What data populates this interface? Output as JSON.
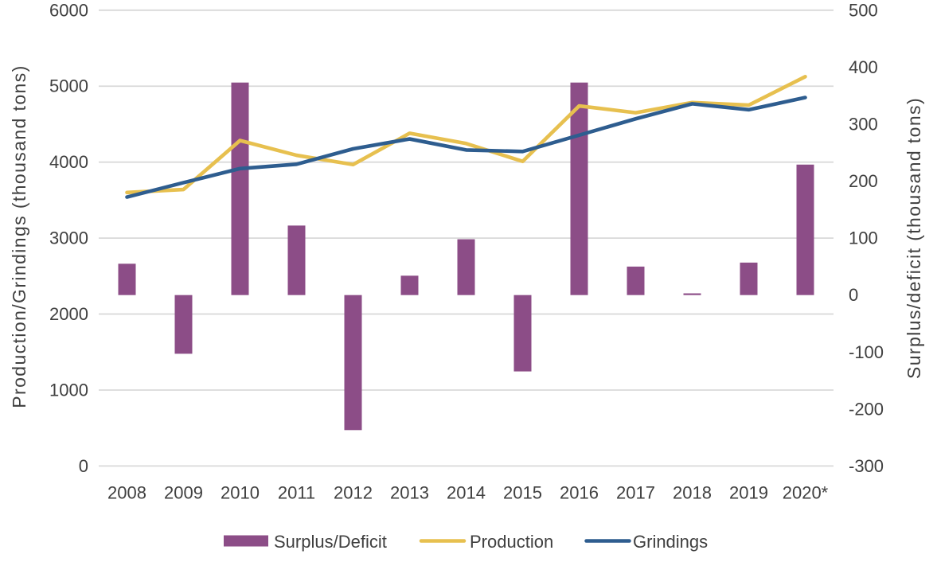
{
  "chart_data": {
    "type": "combo",
    "title": "",
    "categories": [
      "2008",
      "2009",
      "2010",
      "2011",
      "2012",
      "2013",
      "2014",
      "2015",
      "2016",
      "2017",
      "2018",
      "2019",
      "2020*"
    ],
    "series": [
      {
        "name": "Surplus/Deficit",
        "type": "bar",
        "axis": "right",
        "color": "#8C4D87",
        "values": [
          55,
          -103,
          373,
          122,
          -237,
          34,
          98,
          -134,
          373,
          50,
          3,
          57,
          229
        ]
      },
      {
        "name": "Production",
        "type": "line",
        "axis": "left",
        "color": "#E7C04F",
        "values": [
          3600,
          3640,
          4285,
          4090,
          3968,
          4380,
          4245,
          4010,
          4740,
          4650,
          4785,
          4750,
          5125
        ]
      },
      {
        "name": "Grindings",
        "type": "line",
        "axis": "left",
        "color": "#2E5D8F",
        "values": [
          3540,
          3730,
          3915,
          3972,
          4175,
          4305,
          4160,
          4140,
          4355,
          4570,
          4768,
          4690,
          4850
        ]
      }
    ],
    "left_axis": {
      "label": "Production/Grindings (thousand tons)",
      "min": 0,
      "max": 6000,
      "step": 1000,
      "ticks": [
        "0",
        "1000",
        "2000",
        "3000",
        "4000",
        "5000",
        "6000"
      ]
    },
    "right_axis": {
      "label": "Surplus/deficit (thousand tons)",
      "min": -300,
      "max": 500,
      "step": 100,
      "ticks": [
        "-300",
        "-200",
        "-100",
        "0",
        "100",
        "200",
        "300",
        "400",
        "500"
      ]
    },
    "grid": true,
    "legend_position": "bottom",
    "legend": [
      "Surplus/Deficit",
      "Production",
      "Grindings"
    ],
    "colors": {
      "gridline": "#D9D9D9",
      "text": "#404040",
      "background": "#FFFFFF"
    }
  }
}
